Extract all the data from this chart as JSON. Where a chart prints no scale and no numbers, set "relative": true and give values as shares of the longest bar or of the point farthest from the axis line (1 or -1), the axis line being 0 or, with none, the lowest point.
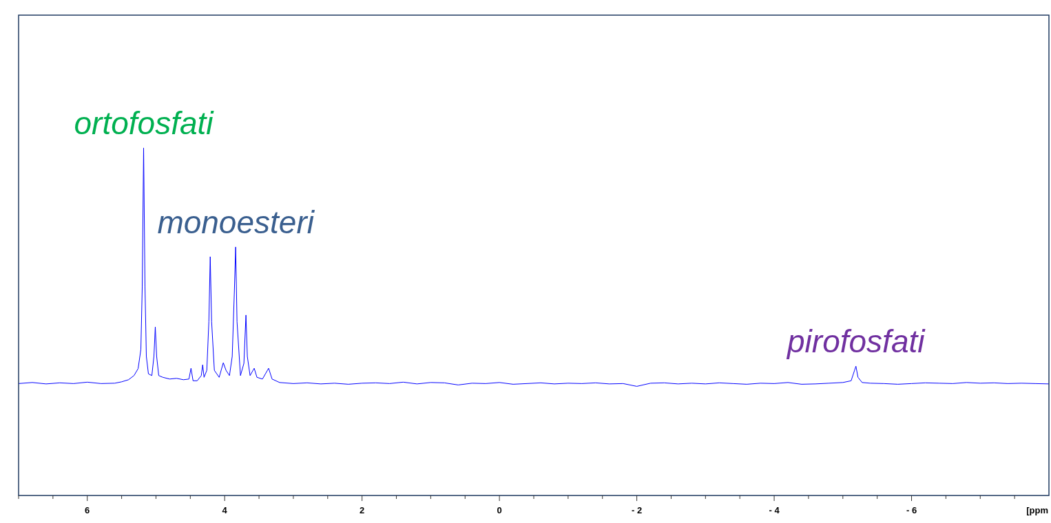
{
  "chart_data": {
    "type": "line",
    "relative": true,
    "xlabel": "[ppm",
    "xlim": [
      7,
      -8
    ],
    "xticks": [
      {
        "value": 7,
        "label": null
      },
      {
        "value": 6.5,
        "label": null
      },
      6,
      {
        "value": 5.5,
        "label": null
      },
      {
        "value": 5,
        "label": null
      },
      {
        "value": 4.5,
        "label": null
      },
      4,
      {
        "value": 3.5,
        "label": null
      },
      {
        "value": 3,
        "label": null
      },
      {
        "value": 2.5,
        "label": null
      },
      2,
      {
        "value": 1.5,
        "label": null
      },
      {
        "value": 1,
        "label": null
      },
      {
        "value": 0.5,
        "label": null
      },
      0,
      {
        "value": -0.5,
        "label": null
      },
      {
        "value": -1,
        "label": null
      },
      {
        "value": -1.5,
        "label": null
      },
      {
        "value": -2,
        "label": "- 2"
      },
      {
        "value": -2.5,
        "label": null
      },
      {
        "value": -3,
        "label": null
      },
      {
        "value": -3.5,
        "label": null
      },
      {
        "value": -4,
        "label": "- 4"
      },
      {
        "value": -4.5,
        "label": null
      },
      {
        "value": -5,
        "label": null
      },
      {
        "value": -5.5,
        "label": null
      },
      {
        "value": -6,
        "label": "- 6"
      },
      {
        "value": -6.5,
        "label": null
      },
      {
        "value": -7,
        "label": null
      },
      {
        "value": -7.5,
        "label": null
      }
    ],
    "grid": false,
    "legend": false,
    "marker": "none",
    "line_style": "solid",
    "annotations": [
      {
        "text": "ortofosfati",
        "x": 5.18,
        "y": 1.0
      },
      {
        "text": "monoesteri",
        "x": 3.84,
        "y": 0.715
      },
      {
        "text": "pirofosfati",
        "x": -5.19,
        "y": 0.372
      }
    ],
    "series": [
      {
        "color": "#0000ff",
        "x": [
          7.0,
          6.8,
          6.6,
          6.4,
          6.2,
          6.0,
          5.8,
          5.6,
          5.5,
          5.4,
          5.32,
          5.26,
          5.22,
          5.2,
          5.18,
          5.16,
          5.14,
          5.11,
          5.06,
          5.03,
          5.01,
          4.99,
          4.96,
          4.9,
          4.8,
          4.7,
          4.6,
          4.52,
          4.49,
          4.46,
          4.4,
          4.34,
          4.32,
          4.3,
          4.26,
          4.23,
          4.21,
          4.19,
          4.15,
          4.08,
          4.02,
          3.98,
          3.93,
          3.89,
          3.86,
          3.84,
          3.82,
          3.77,
          3.72,
          3.69,
          3.67,
          3.63,
          3.57,
          3.53,
          3.45,
          3.36,
          3.31,
          3.2,
          3.0,
          2.8,
          2.6,
          2.4,
          2.2,
          2.0,
          1.8,
          1.6,
          1.4,
          1.2,
          1.0,
          0.8,
          0.6,
          0.4,
          0.2,
          0.0,
          -0.2,
          -0.4,
          -0.6,
          -0.8,
          -1.0,
          -1.2,
          -1.4,
          -1.6,
          -1.8,
          -2.0,
          -2.2,
          -2.4,
          -2.6,
          -2.8,
          -3.0,
          -3.2,
          -3.4,
          -3.6,
          -3.8,
          -4.0,
          -4.2,
          -4.4,
          -4.6,
          -4.8,
          -5.0,
          -5.12,
          -5.17,
          -5.19,
          -5.22,
          -5.28,
          -5.4,
          -5.6,
          -5.8,
          -6.0,
          -6.2,
          -6.4,
          -6.6,
          -6.8,
          -7.0,
          -7.2,
          -7.4,
          -7.6,
          -7.8,
          -8.0
        ],
        "values": [
          0.322,
          0.325,
          0.321,
          0.324,
          0.322,
          0.326,
          0.322,
          0.323,
          0.327,
          0.333,
          0.345,
          0.365,
          0.42,
          0.6,
          1.0,
          0.6,
          0.4,
          0.35,
          0.345,
          0.4,
          0.485,
          0.4,
          0.345,
          0.34,
          0.335,
          0.337,
          0.333,
          0.335,
          0.366,
          0.33,
          0.33,
          0.345,
          0.376,
          0.34,
          0.36,
          0.5,
          0.687,
          0.5,
          0.36,
          0.34,
          0.382,
          0.36,
          0.345,
          0.4,
          0.58,
          0.715,
          0.5,
          0.345,
          0.38,
          0.519,
          0.4,
          0.345,
          0.366,
          0.34,
          0.335,
          0.366,
          0.335,
          0.325,
          0.322,
          0.324,
          0.321,
          0.323,
          0.32,
          0.323,
          0.324,
          0.322,
          0.326,
          0.321,
          0.325,
          0.324,
          0.318,
          0.323,
          0.322,
          0.325,
          0.32,
          0.322,
          0.324,
          0.321,
          0.323,
          0.322,
          0.324,
          0.321,
          0.322,
          0.314,
          0.323,
          0.324,
          0.321,
          0.323,
          0.321,
          0.324,
          0.322,
          0.32,
          0.323,
          0.322,
          0.325,
          0.32,
          0.321,
          0.323,
          0.325,
          0.33,
          0.36,
          0.372,
          0.34,
          0.325,
          0.323,
          0.322,
          0.32,
          0.322,
          0.324,
          0.323,
          0.322,
          0.325,
          0.323,
          0.324,
          0.322,
          0.323,
          0.322,
          0.321
        ]
      }
    ]
  }
}
